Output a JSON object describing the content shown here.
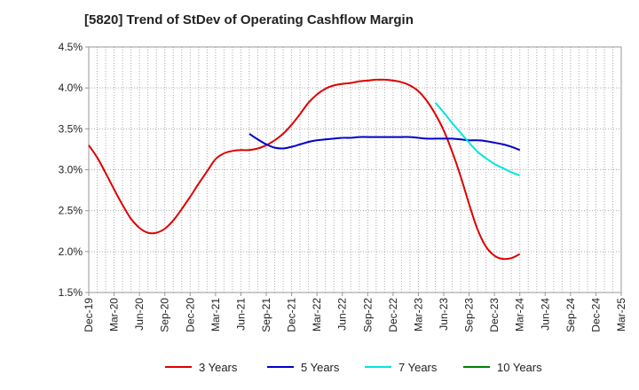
{
  "chart_data": {
    "type": "line",
    "title": "[5820]  Trend of StDev of Operating Cashflow Margin",
    "xlabel": "",
    "ylabel": "",
    "x_ticks": [
      "Dec-19",
      "Mar-20",
      "Jun-20",
      "Sep-20",
      "Dec-20",
      "Mar-21",
      "Jun-21",
      "Sep-21",
      "Dec-21",
      "Mar-22",
      "Jun-22",
      "Sep-22",
      "Dec-22",
      "Mar-23",
      "Jun-23",
      "Sep-23",
      "Dec-23",
      "Mar-24",
      "Jun-24",
      "Sep-24",
      "Dec-24",
      "Mar-25"
    ],
    "y_ticks": [
      "1.5%",
      "2.0%",
      "2.5%",
      "3.0%",
      "3.5%",
      "4.0%",
      "4.5%"
    ],
    "ylim": [
      1.5,
      4.5
    ],
    "y_unit": "%",
    "grid": true,
    "legend_position": "bottom",
    "series": [
      {
        "name": "3 Years",
        "color": "#dd0000",
        "values": [
          3.3,
          3.15,
          2.96,
          2.76,
          2.57,
          2.4,
          2.29,
          2.23,
          2.23,
          2.28,
          2.38,
          2.52,
          2.67,
          2.83,
          2.98,
          3.13,
          3.2,
          3.23,
          3.24,
          3.24,
          3.26,
          3.3,
          3.36,
          3.44,
          3.55,
          3.68,
          3.82,
          3.92,
          3.99,
          4.03,
          4.05,
          4.06,
          4.08,
          4.09,
          4.1,
          4.1,
          4.09,
          4.07,
          4.03,
          3.96,
          3.84,
          3.68,
          3.48,
          3.22,
          2.92,
          2.58,
          2.27,
          2.06,
          1.95,
          1.91,
          1.92,
          1.97
        ]
      },
      {
        "name": "5 Years",
        "color": "#0000cc",
        "values": [
          null,
          null,
          null,
          null,
          null,
          null,
          null,
          null,
          null,
          null,
          null,
          null,
          null,
          null,
          null,
          null,
          null,
          null,
          null,
          3.44,
          3.37,
          3.31,
          3.27,
          3.26,
          3.28,
          3.31,
          3.34,
          3.36,
          3.37,
          3.38,
          3.39,
          3.39,
          3.4,
          3.4,
          3.4,
          3.4,
          3.4,
          3.4,
          3.4,
          3.39,
          3.38,
          3.38,
          3.38,
          3.38,
          3.37,
          3.36,
          3.36,
          3.35,
          3.33,
          3.31,
          3.28,
          3.24
        ]
      },
      {
        "name": "7 Years",
        "color": "#00e5e5",
        "values": [
          null,
          null,
          null,
          null,
          null,
          null,
          null,
          null,
          null,
          null,
          null,
          null,
          null,
          null,
          null,
          null,
          null,
          null,
          null,
          null,
          null,
          null,
          null,
          null,
          null,
          null,
          null,
          null,
          null,
          null,
          null,
          null,
          null,
          null,
          null,
          null,
          null,
          null,
          null,
          null,
          null,
          3.82,
          3.7,
          3.57,
          3.45,
          3.33,
          3.22,
          3.14,
          3.07,
          3.02,
          2.97,
          2.93
        ]
      },
      {
        "name": "10 Years",
        "color": "#008000",
        "values": []
      }
    ]
  }
}
